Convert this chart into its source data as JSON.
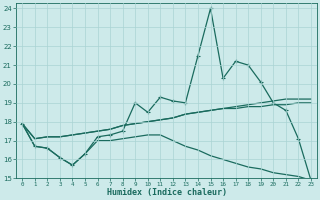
{
  "xlabel": "Humidex (Indice chaleur)",
  "x": [
    0,
    1,
    2,
    3,
    4,
    5,
    6,
    7,
    8,
    9,
    10,
    11,
    12,
    13,
    14,
    15,
    16,
    17,
    18,
    19,
    20,
    21,
    22,
    23
  ],
  "line_main": [
    17.9,
    16.7,
    16.6,
    16.1,
    15.7,
    16.3,
    17.2,
    17.3,
    17.5,
    19.0,
    18.5,
    19.3,
    19.1,
    19.0,
    21.5,
    24.0,
    20.3,
    21.2,
    21.0,
    20.1,
    19.0,
    18.6,
    17.1,
    14.9
  ],
  "line_upper": [
    17.9,
    17.1,
    17.2,
    17.2,
    17.3,
    17.4,
    17.5,
    17.6,
    17.8,
    17.9,
    18.0,
    18.1,
    18.2,
    18.4,
    18.5,
    18.6,
    18.7,
    18.8,
    18.9,
    19.0,
    19.1,
    19.2,
    19.2,
    19.2
  ],
  "line_mid": [
    17.9,
    17.1,
    17.2,
    17.2,
    17.3,
    17.4,
    17.5,
    17.6,
    17.8,
    17.9,
    18.0,
    18.1,
    18.2,
    18.4,
    18.5,
    18.6,
    18.7,
    18.7,
    18.8,
    18.8,
    18.9,
    18.9,
    19.0,
    19.0
  ],
  "line_lower": [
    17.9,
    16.7,
    16.6,
    16.1,
    15.7,
    16.3,
    17.0,
    17.0,
    17.1,
    17.2,
    17.3,
    17.3,
    17.0,
    16.7,
    16.5,
    16.2,
    16.0,
    15.8,
    15.6,
    15.5,
    15.3,
    15.2,
    15.1,
    14.9
  ],
  "line_color": "#1a6b5e",
  "bg_color": "#cdeaea",
  "grid_color": "#aad4d4",
  "ylim": [
    15,
    24
  ],
  "xlim": [
    0,
    23
  ],
  "yticks": [
    15,
    16,
    17,
    18,
    19,
    20,
    21,
    22,
    23,
    24
  ],
  "xticks": [
    0,
    1,
    2,
    3,
    4,
    5,
    6,
    7,
    8,
    9,
    10,
    11,
    12,
    13,
    14,
    15,
    16,
    17,
    18,
    19,
    20,
    21,
    22,
    23
  ]
}
